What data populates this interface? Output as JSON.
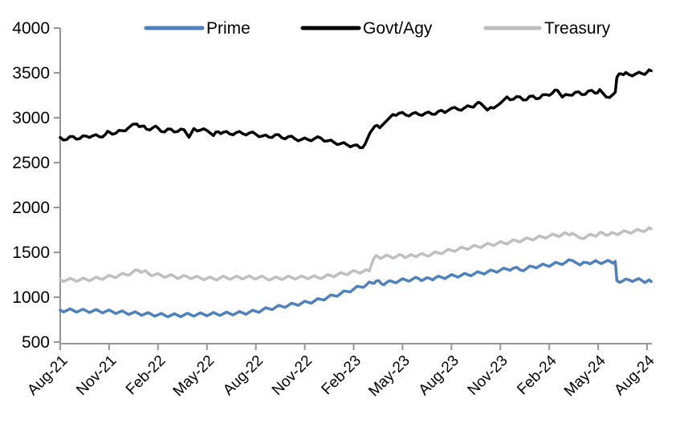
{
  "chart_data": {
    "type": "line",
    "title": "",
    "xlabel": "",
    "ylabel": "",
    "grid": false,
    "legend_position": "top",
    "background_color": "#ffffff",
    "axis_color": "#969696",
    "y_axis": {
      "min": 500,
      "max": 4000,
      "ticks": [
        500,
        1000,
        1500,
        2000,
        2500,
        3000,
        3500,
        4000
      ]
    },
    "x_axis": {
      "tick_labels": [
        "Aug-21",
        "Nov-21",
        "Feb-22",
        "May-22",
        "Aug-22",
        "Nov-22",
        "Feb-23",
        "May-23",
        "Aug-23",
        "Nov-23",
        "Feb-24",
        "May-24",
        "Aug-24"
      ],
      "tick_month_positions": [
        0,
        3,
        6,
        9,
        12,
        15,
        18,
        21,
        24,
        27,
        30,
        33,
        36
      ]
    },
    "series": [
      {
        "name": "Prime",
        "color": "#4F81BD",
        "points": [
          [
            0,
            856
          ],
          [
            0.4,
            852
          ],
          [
            0.8,
            854
          ],
          [
            1.2,
            850
          ],
          [
            1.6,
            848
          ],
          [
            2,
            846
          ],
          [
            2.4,
            844
          ],
          [
            2.8,
            842
          ],
          [
            3.2,
            838
          ],
          [
            3.6,
            833
          ],
          [
            4,
            828
          ],
          [
            4.4,
            822
          ],
          [
            4.8,
            818
          ],
          [
            5.2,
            813
          ],
          [
            5.6,
            808
          ],
          [
            6,
            804
          ],
          [
            6.4,
            800
          ],
          [
            6.8,
            798
          ],
          [
            7.2,
            799
          ],
          [
            7.6,
            802
          ],
          [
            8,
            805
          ],
          [
            8.4,
            808
          ],
          [
            8.8,
            810
          ],
          [
            9.2,
            811
          ],
          [
            9.6,
            813
          ],
          [
            10,
            815
          ],
          [
            10.4,
            818
          ],
          [
            10.8,
            821
          ],
          [
            11.2,
            825
          ],
          [
            11.6,
            832
          ],
          [
            12,
            842
          ],
          [
            12.4,
            858
          ],
          [
            12.8,
            872
          ],
          [
            13.2,
            886
          ],
          [
            13.6,
            898
          ],
          [
            14,
            910
          ],
          [
            14.4,
            922
          ],
          [
            14.8,
            932
          ],
          [
            15.2,
            944
          ],
          [
            15.6,
            958
          ],
          [
            16,
            976
          ],
          [
            16.4,
            998
          ],
          [
            16.8,
            1018
          ],
          [
            17.2,
            1040
          ],
          [
            17.6,
            1064
          ],
          [
            18,
            1090
          ],
          [
            18.4,
            1116
          ],
          [
            18.8,
            1140
          ],
          [
            19.1,
            1162
          ],
          [
            19.4,
            1182
          ],
          [
            19.7,
            1150
          ],
          [
            20,
            1162
          ],
          [
            20.4,
            1172
          ],
          [
            20.8,
            1184
          ],
          [
            21.2,
            1192
          ],
          [
            21.6,
            1200
          ],
          [
            22,
            1208
          ],
          [
            22.3,
            1196
          ],
          [
            22.7,
            1206
          ],
          [
            23,
            1214
          ],
          [
            23.4,
            1222
          ],
          [
            23.8,
            1230
          ],
          [
            24.2,
            1238
          ],
          [
            24.6,
            1244
          ],
          [
            25,
            1252
          ],
          [
            25.4,
            1260
          ],
          [
            25.8,
            1272
          ],
          [
            26.2,
            1280
          ],
          [
            26.6,
            1292
          ],
          [
            27,
            1302
          ],
          [
            27.4,
            1312
          ],
          [
            27.8,
            1324
          ],
          [
            28.2,
            1306
          ],
          [
            28.6,
            1318
          ],
          [
            29,
            1340
          ],
          [
            29.4,
            1348
          ],
          [
            29.8,
            1356
          ],
          [
            30.2,
            1366
          ],
          [
            30.6,
            1376
          ],
          [
            31,
            1388
          ],
          [
            31.4,
            1410
          ],
          [
            31.9,
            1358
          ],
          [
            32.3,
            1386
          ],
          [
            32.7,
            1392
          ],
          [
            33,
            1390
          ],
          [
            33.4,
            1394
          ],
          [
            33.8,
            1392
          ],
          [
            34.05,
            1400
          ],
          [
            34.15,
            1185
          ],
          [
            34.5,
            1180
          ],
          [
            34.9,
            1192
          ],
          [
            35.3,
            1194
          ],
          [
            35.7,
            1184
          ],
          [
            36,
            1178
          ],
          [
            36.25,
            1174
          ]
        ]
      },
      {
        "name": "Govt/Agy",
        "color": "#000000",
        "points": [
          [
            0,
            2780
          ],
          [
            0.4,
            2757
          ],
          [
            0.8,
            2790
          ],
          [
            1.2,
            2768
          ],
          [
            1.6,
            2795
          ],
          [
            2,
            2800
          ],
          [
            2.4,
            2788
          ],
          [
            2.8,
            2820
          ],
          [
            3,
            2842
          ],
          [
            3.4,
            2826
          ],
          [
            3.8,
            2856
          ],
          [
            4.2,
            2890
          ],
          [
            4.7,
            2930
          ],
          [
            5,
            2906
          ],
          [
            5.3,
            2872
          ],
          [
            5.7,
            2892
          ],
          [
            6,
            2886
          ],
          [
            6.4,
            2842
          ],
          [
            6.8,
            2872
          ],
          [
            7.2,
            2846
          ],
          [
            7.6,
            2866
          ],
          [
            7.9,
            2782
          ],
          [
            8.2,
            2880
          ],
          [
            8.6,
            2862
          ],
          [
            9,
            2858
          ],
          [
            9.4,
            2802
          ],
          [
            9.7,
            2844
          ],
          [
            10,
            2838
          ],
          [
            10.4,
            2820
          ],
          [
            10.8,
            2836
          ],
          [
            11.2,
            2822
          ],
          [
            11.6,
            2830
          ],
          [
            12,
            2816
          ],
          [
            12.4,
            2796
          ],
          [
            12.8,
            2784
          ],
          [
            13.2,
            2812
          ],
          [
            13.6,
            2776
          ],
          [
            14,
            2790
          ],
          [
            14.4,
            2764
          ],
          [
            14.8,
            2758
          ],
          [
            15.2,
            2756
          ],
          [
            15.6,
            2768
          ],
          [
            16,
            2772
          ],
          [
            16.4,
            2742
          ],
          [
            16.8,
            2726
          ],
          [
            17.2,
            2712
          ],
          [
            17.6,
            2698
          ],
          [
            18,
            2692
          ],
          [
            18.4,
            2666
          ],
          [
            18.7,
            2706
          ],
          [
            19,
            2830
          ],
          [
            19.3,
            2906
          ],
          [
            19.6,
            2888
          ],
          [
            20,
            2962
          ],
          [
            20.4,
            3036
          ],
          [
            20.8,
            3052
          ],
          [
            21.2,
            3030
          ],
          [
            21.6,
            3046
          ],
          [
            22,
            3036
          ],
          [
            22.4,
            3052
          ],
          [
            22.8,
            3040
          ],
          [
            23.2,
            3072
          ],
          [
            23.6,
            3058
          ],
          [
            24,
            3105
          ],
          [
            24.4,
            3092
          ],
          [
            24.8,
            3110
          ],
          [
            25.2,
            3122
          ],
          [
            25.5,
            3150
          ],
          [
            25.8,
            3160
          ],
          [
            26.2,
            3086
          ],
          [
            26.6,
            3108
          ],
          [
            27,
            3162
          ],
          [
            27.4,
            3232
          ],
          [
            27.8,
            3206
          ],
          [
            28.2,
            3232
          ],
          [
            28.6,
            3200
          ],
          [
            29,
            3242
          ],
          [
            29.4,
            3218
          ],
          [
            29.8,
            3258
          ],
          [
            30.2,
            3276
          ],
          [
            30.5,
            3306
          ],
          [
            30.8,
            3230
          ],
          [
            31.2,
            3254
          ],
          [
            31.6,
            3284
          ],
          [
            32,
            3258
          ],
          [
            32.4,
            3298
          ],
          [
            32.8,
            3276
          ],
          [
            33.1,
            3314
          ],
          [
            33.5,
            3230
          ],
          [
            33.9,
            3258
          ],
          [
            34.05,
            3285
          ],
          [
            34.15,
            3450
          ],
          [
            34.4,
            3490
          ],
          [
            34.7,
            3505
          ],
          [
            34.9,
            3480
          ],
          [
            35.3,
            3488
          ],
          [
            35.7,
            3492
          ],
          [
            36,
            3508
          ],
          [
            36.25,
            3524
          ]
        ]
      },
      {
        "name": "Treasury",
        "color": "#BFBFBF",
        "points": [
          [
            0,
            1196
          ],
          [
            0.4,
            1190
          ],
          [
            0.8,
            1196
          ],
          [
            1.2,
            1192
          ],
          [
            1.6,
            1198
          ],
          [
            2,
            1203
          ],
          [
            2.4,
            1210
          ],
          [
            2.8,
            1222
          ],
          [
            3.2,
            1230
          ],
          [
            3.6,
            1242
          ],
          [
            4,
            1254
          ],
          [
            4.4,
            1272
          ],
          [
            4.8,
            1300
          ],
          [
            5.1,
            1288
          ],
          [
            5.4,
            1265
          ],
          [
            5.8,
            1250
          ],
          [
            6.2,
            1242
          ],
          [
            6.6,
            1236
          ],
          [
            7,
            1232
          ],
          [
            7.4,
            1222
          ],
          [
            7.8,
            1228
          ],
          [
            8.2,
            1220
          ],
          [
            8.6,
            1214
          ],
          [
            9,
            1210
          ],
          [
            9.4,
            1206
          ],
          [
            9.8,
            1214
          ],
          [
            10.2,
            1218
          ],
          [
            10.6,
            1214
          ],
          [
            11,
            1220
          ],
          [
            11.4,
            1222
          ],
          [
            11.8,
            1218
          ],
          [
            12.2,
            1222
          ],
          [
            12.6,
            1212
          ],
          [
            13,
            1204
          ],
          [
            13.4,
            1212
          ],
          [
            13.8,
            1216
          ],
          [
            14.2,
            1220
          ],
          [
            14.6,
            1218
          ],
          [
            15,
            1221
          ],
          [
            15.4,
            1224
          ],
          [
            15.8,
            1220
          ],
          [
            16.2,
            1228
          ],
          [
            16.6,
            1240
          ],
          [
            17,
            1252
          ],
          [
            17.4,
            1262
          ],
          [
            17.8,
            1276
          ],
          [
            18.2,
            1284
          ],
          [
            18.6,
            1288
          ],
          [
            18.95,
            1292
          ],
          [
            19.25,
            1438
          ],
          [
            19.5,
            1452
          ],
          [
            19.8,
            1446
          ],
          [
            20.2,
            1456
          ],
          [
            20.6,
            1450
          ],
          [
            21,
            1464
          ],
          [
            21.3,
            1452
          ],
          [
            21.7,
            1462
          ],
          [
            22,
            1472
          ],
          [
            22.4,
            1468
          ],
          [
            22.8,
            1482
          ],
          [
            23.2,
            1494
          ],
          [
            23.6,
            1510
          ],
          [
            24,
            1522
          ],
          [
            24.4,
            1534
          ],
          [
            24.8,
            1546
          ],
          [
            25.2,
            1556
          ],
          [
            25.6,
            1566
          ],
          [
            26,
            1576
          ],
          [
            26.4,
            1588
          ],
          [
            26.8,
            1598
          ],
          [
            27.2,
            1606
          ],
          [
            27.6,
            1616
          ],
          [
            28,
            1628
          ],
          [
            28.4,
            1638
          ],
          [
            28.8,
            1650
          ],
          [
            29.2,
            1660
          ],
          [
            29.6,
            1670
          ],
          [
            30,
            1682
          ],
          [
            30.4,
            1690
          ],
          [
            30.8,
            1698
          ],
          [
            31.1,
            1706
          ],
          [
            31.4,
            1714
          ],
          [
            31.9,
            1660
          ],
          [
            32.3,
            1678
          ],
          [
            32.7,
            1690
          ],
          [
            33,
            1702
          ],
          [
            33.3,
            1714
          ],
          [
            33.7,
            1700
          ],
          [
            34,
            1710
          ],
          [
            34.4,
            1720
          ],
          [
            34.8,
            1728
          ],
          [
            35.2,
            1734
          ],
          [
            35.6,
            1742
          ],
          [
            36,
            1754
          ],
          [
            36.25,
            1762
          ]
        ]
      }
    ]
  }
}
